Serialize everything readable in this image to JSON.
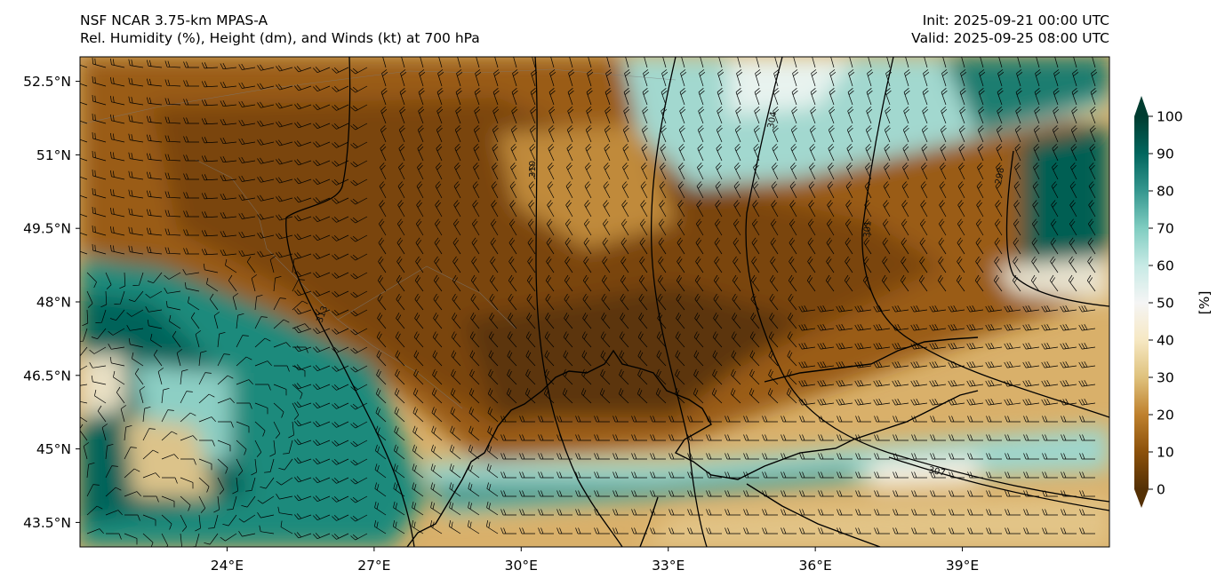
{
  "header": {
    "model": "NSF NCAR 3.75-km MPAS-A",
    "field": "Rel. Humidity (%), Height (dm), and Winds (kt) at 700 hPa",
    "init": "Init: 2025-09-21 00:00 UTC",
    "valid": "Valid: 2025-09-25 08:00 UTC"
  },
  "map": {
    "lon_range": [
      21.0,
      42.0
    ],
    "lat_range": [
      43.0,
      53.0
    ],
    "lat_ticks": [
      {
        "value": 52.5,
        "label": "52.5°N"
      },
      {
        "value": 51.0,
        "label": "51°N"
      },
      {
        "value": 49.5,
        "label": "49.5°N"
      },
      {
        "value": 48.0,
        "label": "48°N"
      },
      {
        "value": 46.5,
        "label": "46.5°N"
      },
      {
        "value": 45.0,
        "label": "45°N"
      },
      {
        "value": 43.5,
        "label": "43.5°N"
      }
    ],
    "lon_ticks": [
      {
        "value": 24,
        "label": "24°E"
      },
      {
        "value": 27,
        "label": "27°E"
      },
      {
        "value": 30,
        "label": "30°E"
      },
      {
        "value": 33,
        "label": "33°E"
      },
      {
        "value": 36,
        "label": "36°E"
      },
      {
        "value": 39,
        "label": "39°E"
      }
    ],
    "height_contours_dm": [
      {
        "label": "313"
      },
      {
        "label": "310"
      },
      {
        "label": "304"
      },
      {
        "label": "301"
      },
      {
        "label": "298"
      },
      {
        "label": "307"
      }
    ]
  },
  "colorbar": {
    "unit_label": "[%]",
    "ticks": [
      "0",
      "10",
      "20",
      "30",
      "40",
      "50",
      "60",
      "70",
      "80",
      "90",
      "100"
    ],
    "colors": [
      "#543005",
      "#8c510a",
      "#bf812d",
      "#dfc27d",
      "#f6e8c3",
      "#f5f5f5",
      "#c7eae5",
      "#80cdc1",
      "#35978f",
      "#01665e",
      "#003c30"
    ]
  },
  "colors": {
    "dry": "#8c510a",
    "moist": "#01665e",
    "contour": "#000000"
  }
}
